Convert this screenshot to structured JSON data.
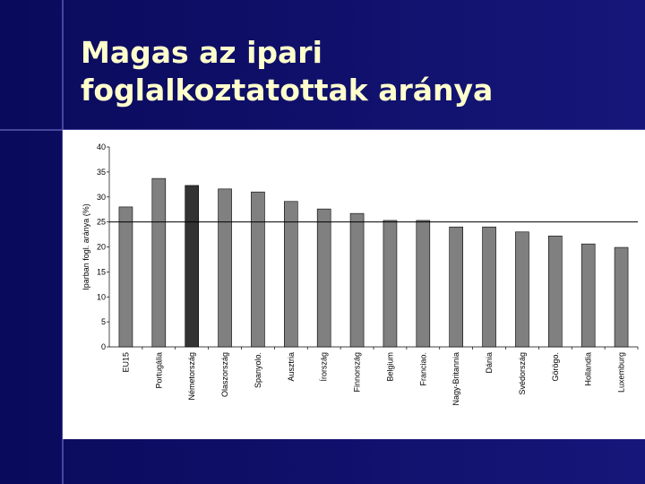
{
  "chart_data": {
    "type": "bar",
    "title": "Magas az ipari foglalkoztatottak aránya",
    "y_label": "Iparban fogl. aránya (%)",
    "categories": [
      "EU15",
      "Portugália",
      "Németország",
      "Olaszország",
      "Spanyolo.",
      "Ausztria",
      "Írország",
      "Finnország",
      "Belgium",
      "Franciao.",
      "Nagy-Britannia",
      "Dánia",
      "Svédország",
      "Görögo.",
      "Hollandia",
      "Luxemburg"
    ],
    "values": [
      28.0,
      33.7,
      32.3,
      31.6,
      31.0,
      29.1,
      27.6,
      26.7,
      25.3,
      25.3,
      24.0,
      24.0,
      23.0,
      22.2,
      20.6,
      19.9
    ],
    "colors": [
      "#808080",
      "#808080",
      "#333333",
      "#808080",
      "#808080",
      "#808080",
      "#808080",
      "#808080",
      "#808080",
      "#808080",
      "#808080",
      "#808080",
      "#808080",
      "#808080",
      "#808080",
      "#808080"
    ],
    "reference_line": 25,
    "ylim": [
      0,
      40
    ],
    "yticks": [
      0,
      5,
      10,
      15,
      20,
      25,
      30,
      35,
      40
    ]
  }
}
